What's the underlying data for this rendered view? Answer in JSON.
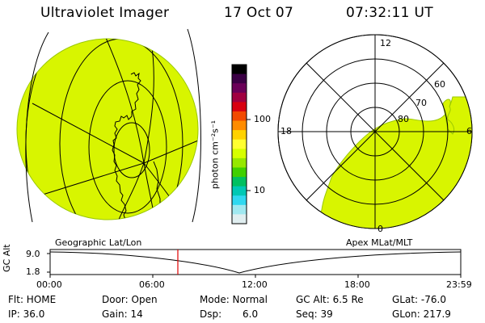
{
  "header": {
    "title": "Ultraviolet Imager",
    "date": "17 Oct 07",
    "time": "07:32:11 UT"
  },
  "colorbar": {
    "unit_label": "photon cm⁻²s⁻¹",
    "ticks": [
      "100",
      "10"
    ],
    "colors": [
      "#000000",
      "#3a0044",
      "#6a0058",
      "#a00040",
      "#d80010",
      "#f24a00",
      "#ff8c00",
      "#ffd200",
      "#ffff30",
      "#d6ff00",
      "#96e800",
      "#40d000",
      "#00c060",
      "#00c8b4",
      "#30d8f0",
      "#a0e8f0",
      "#e0eef0"
    ]
  },
  "left_map": {
    "label": "Geographic Lat/Lon",
    "fill_color": "#d8f500"
  },
  "right_map": {
    "label": "Apex MLat/MLT",
    "mlt_labels": {
      "top": "12",
      "left": "18",
      "right": "6",
      "bottom": "0"
    },
    "lat_labels": [
      "60",
      "70",
      "80"
    ],
    "fill_color": "#d8f500"
  },
  "timeline": {
    "y_axis_label": "GC Alt",
    "y_ticks": [
      "9.0",
      "1.8"
    ],
    "x_ticks": [
      "00:00",
      "06:00",
      "12:00",
      "18:00",
      "23:59"
    ],
    "marker_color": "#e00000"
  },
  "info": {
    "flt": "Flt: HOME",
    "ip": "IP: 36.0",
    "door": "Door: Open",
    "gain": "Gain: 14",
    "mode": "Mode: Normal",
    "dsp_label": "Dsp:",
    "dsp_value": "6.0",
    "gcalt": "GC Alt: 6.5 Re",
    "seq": "Seq: 39",
    "glat": "GLat: -76.0",
    "glon": "GLon: 217.9"
  }
}
